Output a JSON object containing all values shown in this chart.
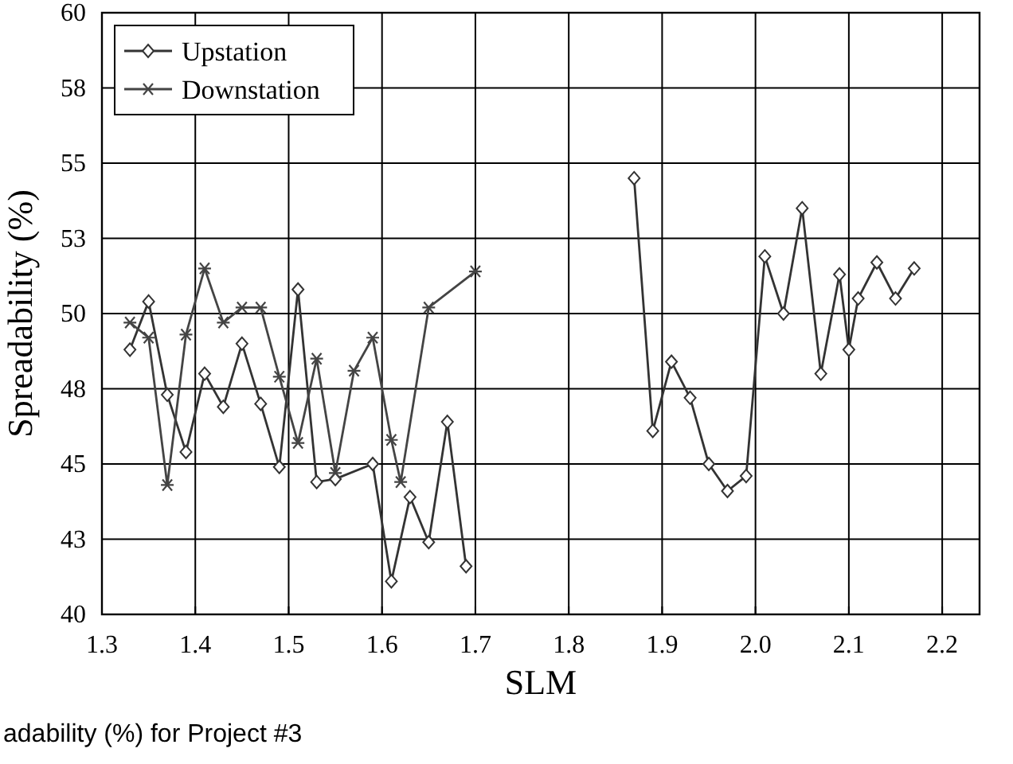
{
  "chart_data": {
    "type": "line",
    "xlabel": "SLM",
    "ylabel": "Spreadability (%)",
    "annotations": [
      "adability (%) for Project #3"
    ],
    "xlim": [
      1.3,
      2.24
    ],
    "xticks": [
      {
        "value": 1.3,
        "label": "1.3"
      },
      {
        "value": 1.4,
        "label": "1.4"
      },
      {
        "value": 1.5,
        "label": "1.5"
      },
      {
        "value": 1.6,
        "label": "1.6"
      },
      {
        "value": 1.7,
        "label": "1.7"
      },
      {
        "value": 1.8,
        "label": "1.8"
      },
      {
        "value": 1.9,
        "label": "1.9"
      },
      {
        "value": 2,
        "label": "2.0"
      },
      {
        "value": 2.1,
        "label": "2.1"
      },
      {
        "value": 2.2,
        "label": "2.2"
      }
    ],
    "ylim": [
      40,
      60
    ],
    "yticks": [
      40,
      {
        "value": 42.5,
        "label": "43"
      },
      45,
      {
        "value": 47.5,
        "label": "48"
      },
      50,
      {
        "value": 52.5,
        "label": "53"
      },
      55,
      {
        "value": 57.5,
        "label": "58"
      },
      60
    ],
    "grid": true,
    "legend": "top left",
    "line_style": "solid",
    "series": [
      {
        "name": "Upstation",
        "color": "#333333",
        "marker": "diamond",
        "x": [
          1.33,
          1.35,
          1.37,
          1.39,
          1.41,
          1.43,
          1.45,
          1.47,
          1.49,
          1.51,
          1.53,
          1.55,
          1.59,
          1.61,
          1.63,
          1.65,
          1.67,
          1.69,
          1.78,
          1.87,
          1.89,
          1.91,
          1.93,
          1.95,
          1.97,
          1.99,
          2.01,
          2.03,
          2.05,
          2.07,
          2.09,
          2.1,
          2.11,
          2.13,
          2.15,
          2.17
        ],
        "values": [
          48.8,
          50.4,
          47.3,
          45.4,
          48.0,
          46.9,
          49.0,
          47.0,
          44.9,
          50.8,
          44.4,
          44.5,
          45.0,
          41.1,
          43.9,
          42.4,
          46.4,
          41.6,
          null,
          54.5,
          46.1,
          48.4,
          47.2,
          45.0,
          44.1,
          44.6,
          51.9,
          50.0,
          53.5,
          48.0,
          51.3,
          48.8,
          50.5,
          51.7,
          50.5,
          51.5
        ]
      },
      {
        "name": "Downstation",
        "color": "#444444",
        "marker": "cross",
        "x": [
          1.33,
          1.35,
          1.37,
          1.39,
          1.41,
          1.43,
          1.45,
          1.47,
          1.49,
          1.51,
          1.53,
          1.55,
          1.57,
          1.59,
          1.61,
          1.62,
          1.65,
          1.7
        ],
        "values": [
          49.7,
          49.2,
          44.3,
          49.3,
          51.5,
          49.7,
          50.2,
          50.2,
          47.9,
          45.7,
          48.5,
          44.7,
          48.1,
          49.2,
          45.8,
          44.4,
          50.2,
          51.4
        ]
      }
    ]
  }
}
